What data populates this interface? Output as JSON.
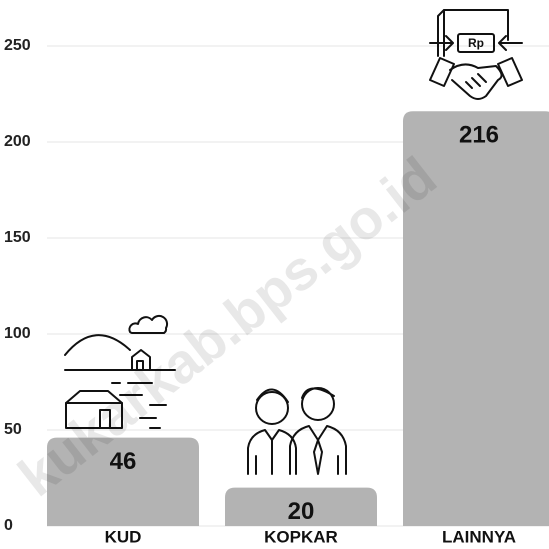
{
  "chart_data": {
    "type": "bar",
    "categories": [
      "KUD",
      "KOPKAR",
      "LAINNYA"
    ],
    "values": [
      46,
      20,
      216
    ],
    "color": "#b3b3b3",
    "ylim": [
      0,
      250
    ],
    "yticks": [
      0,
      50,
      100,
      150,
      200,
      250
    ],
    "grid": true,
    "watermark": "kukarkab.bps.go.id"
  }
}
